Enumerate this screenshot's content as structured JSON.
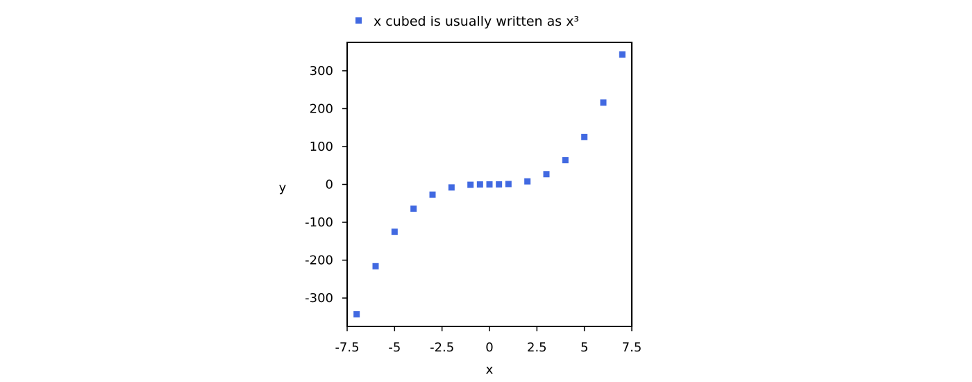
{
  "chart_data": {
    "type": "scatter",
    "series": [
      {
        "name": "x cubed is usually written as x³",
        "color": "#4169e1",
        "marker": "square",
        "x": [
          -7,
          -6,
          -5,
          -4,
          -3,
          -2,
          -1,
          -0.5,
          0,
          0.5,
          1,
          2,
          3,
          4,
          5,
          6,
          7
        ],
        "y": [
          -343,
          -216,
          -125,
          -64,
          -27,
          -8,
          -1,
          -0.125,
          0,
          0.125,
          1,
          8,
          27,
          64,
          125,
          216,
          343
        ]
      }
    ],
    "xlabel": "x",
    "ylabel": "y",
    "xlim": [
      -7.5,
      7.5
    ],
    "ylim": [
      -375,
      375
    ],
    "xticks": [
      -7.5,
      -5,
      -2.5,
      0,
      2.5,
      5,
      7.5
    ],
    "xtick_labels": [
      "-7.5",
      "-5",
      "-2.5",
      "0",
      "2.5",
      "5",
      "7.5"
    ],
    "yticks": [
      -300,
      -200,
      -100,
      0,
      100,
      200,
      300
    ],
    "ytick_labels": [
      "-300",
      "-200",
      "-100",
      "0",
      "100",
      "200",
      "300"
    ],
    "grid": false,
    "legend_position": "top"
  }
}
